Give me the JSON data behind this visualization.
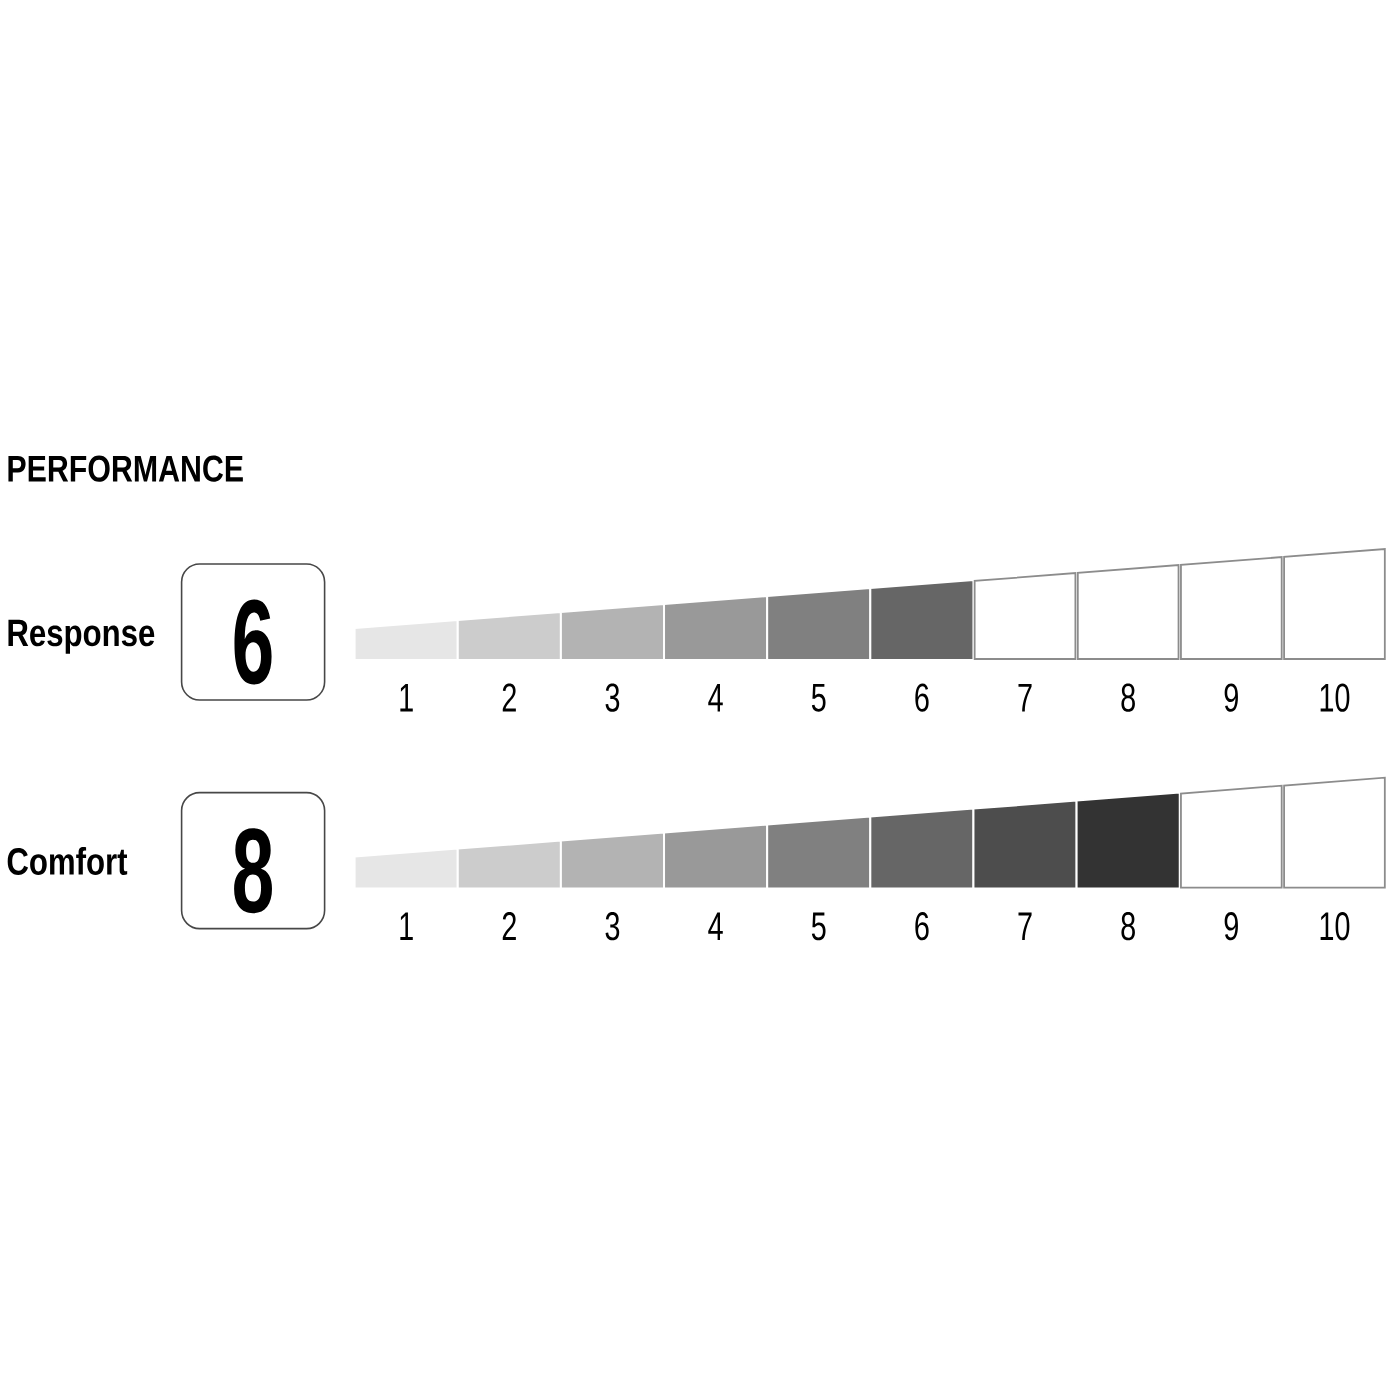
{
  "chart_data": {
    "type": "bar",
    "orientation": "horizontal",
    "stacked": true,
    "title": "PERFORMANCE",
    "categories": [
      "Response",
      "Comfort"
    ],
    "series": [
      {
        "color": "#e6e6e6",
        "values": [
          1,
          1
        ]
      },
      {
        "color": "#cccccc",
        "values": [
          1,
          1
        ]
      },
      {
        "color": "#b3b3b3",
        "values": [
          1,
          1
        ]
      },
      {
        "color": "#999999",
        "values": [
          1,
          1
        ]
      },
      {
        "color": "#808080",
        "values": [
          1,
          1
        ]
      },
      {
        "color": "#666666",
        "values": [
          1,
          1
        ]
      },
      {
        "color": "#4d4d4d",
        "values": [
          null,
          1
        ]
      },
      {
        "color": "#333333",
        "values": [
          null,
          1
        ]
      }
    ],
    "totals": [
      "6",
      "8"
    ],
    "xlim": [
      0,
      10
    ],
    "xticks": [
      {
        "value": 0.5,
        "label": "1"
      },
      {
        "value": 1.5,
        "label": "2"
      },
      {
        "value": 2.5,
        "label": "3"
      },
      {
        "value": 3.5,
        "label": "4"
      },
      {
        "value": 4.5,
        "label": "5"
      },
      {
        "value": 5.5,
        "label": "6"
      },
      {
        "value": 6.5,
        "label": "7"
      },
      {
        "value": 7.5,
        "label": "8"
      },
      {
        "value": 8.5,
        "label": "9"
      },
      {
        "value": 9.5,
        "label": "10"
      }
    ]
  }
}
